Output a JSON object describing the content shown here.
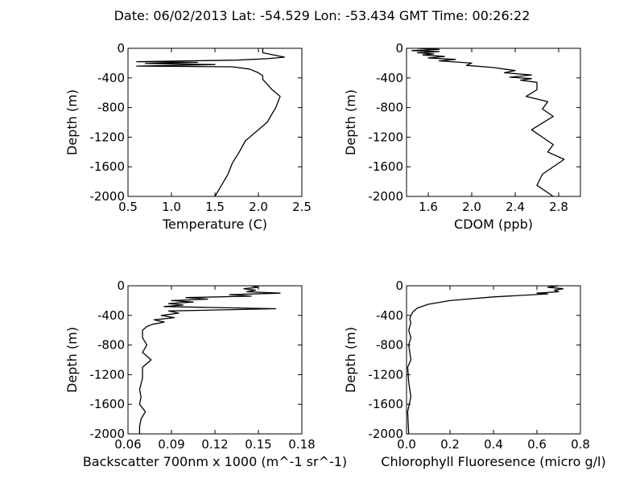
{
  "header": {
    "title": "Date: 06/02/2013  Lat:  -54.529 Lon:  -53.434  GMT Time: 00:26:22"
  },
  "chart_data": [
    {
      "type": "line",
      "xlabel": "Temperature (C)",
      "ylabel": "Depth (m)",
      "xlim": [
        0.5,
        2.5
      ],
      "ylim": [
        -2000,
        0
      ],
      "xticks": [
        "0.5",
        "1.0",
        "1.5",
        "2.0",
        "2.5"
      ],
      "yticks": [
        "0",
        "-400",
        "-800",
        "-1200",
        "-1600",
        "-2000"
      ],
      "grid": false,
      "x": [
        2.05,
        2.05,
        2.22,
        2.3,
        2.1,
        1.75,
        0.6,
        1.3,
        0.7,
        1.5,
        0.6,
        1.7,
        1.9,
        2.0,
        2.05,
        2.05,
        2.15,
        2.2,
        2.25,
        2.2,
        2.1,
        1.95,
        1.85,
        1.78,
        1.7,
        1.65,
        1.6,
        1.55,
        1.5
      ],
      "y": [
        0,
        -60,
        -100,
        -120,
        -140,
        -160,
        -180,
        -190,
        -205,
        -220,
        -240,
        -250,
        -280,
        -330,
        -370,
        -420,
        -550,
        -600,
        -650,
        -800,
        -1000,
        -1150,
        -1250,
        -1400,
        -1550,
        -1700,
        -1800,
        -1900,
        -2000
      ]
    },
    {
      "type": "line",
      "xlabel": "CDOM (ppb)",
      "ylabel": "Depth (m)",
      "xlim": [
        1.4,
        3.0
      ],
      "ylim": [
        -2000,
        0
      ],
      "xticks": [
        "1.6",
        "2.0",
        "2.4",
        "2.8"
      ],
      "yticks": [
        "0",
        "-400",
        "-800",
        "-1200",
        "-1600",
        "-2000"
      ],
      "grid": false,
      "x": [
        1.5,
        1.7,
        1.45,
        1.7,
        1.5,
        1.65,
        1.55,
        1.75,
        1.6,
        1.85,
        1.7,
        2.0,
        1.95,
        2.2,
        2.3,
        2.4,
        2.3,
        2.55,
        2.35,
        2.55,
        2.45,
        2.6,
        2.6,
        2.6,
        2.5,
        2.7,
        2.65,
        2.75,
        2.55,
        2.75,
        2.7,
        2.85,
        2.65,
        2.6,
        2.75
      ],
      "y": [
        0,
        -15,
        -30,
        -45,
        -60,
        -75,
        -90,
        -110,
        -130,
        -150,
        -170,
        -200,
        -230,
        -260,
        -280,
        -300,
        -330,
        -360,
        -390,
        -410,
        -430,
        -460,
        -500,
        -560,
        -650,
        -720,
        -820,
        -920,
        -1100,
        -1300,
        -1400,
        -1500,
        -1700,
        -1850,
        -2000
      ]
    },
    {
      "type": "line",
      "xlabel": "Backscatter 700nm x 1000 (m^-1 sr^-1)",
      "ylabel": "Depth (m)",
      "xlim": [
        0.06,
        0.18
      ],
      "ylim": [
        -2000,
        0
      ],
      "xticks": [
        "0.06",
        "0.09",
        "0.12",
        "0.15",
        "0.18"
      ],
      "yticks": [
        "0",
        "-400",
        "-800",
        "-1200",
        "-1600",
        "-2000"
      ],
      "grid": false,
      "x": [
        0.145,
        0.15,
        0.14,
        0.148,
        0.142,
        0.165,
        0.13,
        0.145,
        0.1,
        0.115,
        0.09,
        0.105,
        0.088,
        0.098,
        0.085,
        0.162,
        0.088,
        0.095,
        0.083,
        0.092,
        0.078,
        0.085,
        0.077,
        0.073,
        0.07,
        0.07,
        0.073,
        0.07,
        0.076,
        0.07,
        0.07,
        0.068,
        0.069,
        0.068,
        0.072,
        0.069,
        0.068,
        0.068
      ],
      "y": [
        0,
        -20,
        -40,
        -60,
        -80,
        -100,
        -120,
        -140,
        -160,
        -180,
        -200,
        -220,
        -240,
        -260,
        -280,
        -310,
        -340,
        -370,
        -400,
        -430,
        -460,
        -490,
        -520,
        -550,
        -600,
        -700,
        -800,
        -900,
        -1000,
        -1100,
        -1250,
        -1400,
        -1500,
        -1600,
        -1700,
        -1800,
        -1900,
        -2000
      ]
    },
    {
      "type": "line",
      "xlabel": "Chlorophyll Fluoresence (micro g/l)",
      "ylabel": "Depth (m)",
      "xlim": [
        0.0,
        0.8
      ],
      "ylim": [
        -2000,
        0
      ],
      "xticks": [
        "0.0",
        "0.2",
        "0.4",
        "0.6",
        "0.8"
      ],
      "yticks": [
        "0",
        "-400",
        "-800",
        "-1200",
        "-1600",
        "-2000"
      ],
      "grid": false,
      "x": [
        0.7,
        0.65,
        0.72,
        0.68,
        0.7,
        0.6,
        0.65,
        0.4,
        0.2,
        0.1,
        0.05,
        0.03,
        0.02,
        0.015,
        0.02,
        0.01,
        0.02,
        0.01,
        0.015,
        0.02,
        0.005,
        0.01,
        0.02,
        0.005,
        0.01
      ],
      "y": [
        0,
        -20,
        -40,
        -60,
        -80,
        -100,
        -110,
        -150,
        -200,
        -250,
        -300,
        -350,
        -400,
        -450,
        -500,
        -600,
        -700,
        -800,
        -900,
        -1000,
        -1100,
        -1300,
        -1500,
        -1700,
        -2000
      ]
    }
  ]
}
